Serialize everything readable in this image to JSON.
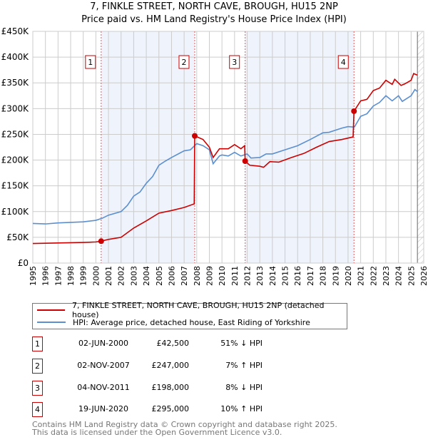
{
  "chart_data": {
    "type": "line",
    "title": "7, FINKLE STREET, NORTH CAVE, BROUGH, HU15 2NP",
    "subtitle": "Price paid vs. HM Land Registry's House Price Index (HPI)",
    "xlim": [
      1995,
      2026
    ],
    "ylim": [
      0,
      450000
    ],
    "x_ticks": [
      "1995",
      "1996",
      "1997",
      "1998",
      "1999",
      "2000",
      "2001",
      "2002",
      "2003",
      "2004",
      "2005",
      "2006",
      "2007",
      "2008",
      "2009",
      "2010",
      "2011",
      "2012",
      "2013",
      "2014",
      "2015",
      "2016",
      "2017",
      "2018",
      "2019",
      "2020",
      "2021",
      "2022",
      "2023",
      "2024",
      "2025",
      "2026"
    ],
    "y_ticks": [
      {
        "v": 0,
        "label": "£0"
      },
      {
        "v": 50000,
        "label": "£50K"
      },
      {
        "v": 100000,
        "label": "£100K"
      },
      {
        "v": 150000,
        "label": "£150K"
      },
      {
        "v": 200000,
        "label": "£200K"
      },
      {
        "v": 250000,
        "label": "£250K"
      },
      {
        "v": 300000,
        "label": "£300K"
      },
      {
        "v": 350000,
        "label": "£350K"
      },
      {
        "v": 400000,
        "label": "£400K"
      },
      {
        "v": 450000,
        "label": "£450K"
      }
    ],
    "grid": true,
    "shaded_periods": [
      [
        2000.42,
        2007.84
      ],
      [
        2011.84,
        2020.47
      ]
    ],
    "forecast_hatch_from": 2025.5,
    "series": [
      {
        "name": "7, FINKLE STREET, NORTH CAVE, BROUGH, HU15 2NP (detached house)",
        "color": "#cc0000",
        "x": [
          1995,
          1997,
          1999,
          2000,
          2000.42,
          2001,
          2002,
          2003,
          2004,
          2005,
          2006,
          2007,
          2007.8,
          2007.84,
          2008.5,
          2009,
          2009.3,
          2009.8,
          2010.5,
          2011,
          2011.5,
          2011.8,
          2011.84,
          2012.2,
          2013,
          2013.3,
          2013.8,
          2014.5,
          2015.5,
          2016.5,
          2017.5,
          2018.5,
          2019.5,
          2020.4,
          2020.47,
          2021,
          2021.5,
          2022,
          2022.5,
          2023,
          2023.5,
          2023.7,
          2024.2,
          2024.5,
          2025,
          2025.2,
          2025.5
        ],
        "y": [
          38000,
          39000,
          40000,
          41000,
          42500,
          46000,
          50000,
          68000,
          82000,
          97000,
          102000,
          108000,
          115000,
          247000,
          240000,
          225000,
          205000,
          222000,
          222000,
          230000,
          222000,
          228000,
          198000,
          190000,
          188000,
          186000,
          197000,
          196000,
          205000,
          213000,
          225000,
          236000,
          240000,
          245000,
          295000,
          315000,
          318000,
          335000,
          340000,
          355000,
          347000,
          357000,
          345000,
          348000,
          355000,
          368000,
          365000
        ]
      },
      {
        "name": "HPI: Average price, detached house, East Riding of Yorkshire",
        "color": "#5b8fd0",
        "x": [
          1995,
          1996,
          1997,
          1998,
          1999,
          2000,
          2000.5,
          2001,
          2002,
          2002.5,
          2003,
          2003.5,
          2004,
          2004.5,
          2005,
          2005.5,
          2006,
          2007,
          2007.5,
          2008,
          2008.5,
          2009,
          2009.3,
          2009.8,
          2010,
          2010.5,
          2011,
          2011.5,
          2012,
          2012.3,
          2013,
          2013.5,
          2014,
          2015,
          2016,
          2017,
          2018,
          2018.5,
          2019,
          2019.5,
          2020,
          2020.5,
          2021,
          2021.5,
          2022,
          2022.5,
          2023,
          2023.5,
          2024,
          2024.3,
          2025,
          2025.3,
          2025.5
        ],
        "y": [
          77000,
          76000,
          78000,
          79000,
          80000,
          83000,
          87000,
          93000,
          100000,
          112000,
          130000,
          138000,
          155000,
          168000,
          190000,
          198000,
          205000,
          218000,
          220000,
          232000,
          228000,
          220000,
          193000,
          208000,
          210000,
          208000,
          215000,
          208000,
          212000,
          204000,
          205000,
          212000,
          212000,
          220000,
          228000,
          240000,
          253000,
          254000,
          258000,
          262000,
          265000,
          264000,
          285000,
          290000,
          305000,
          312000,
          325000,
          315000,
          325000,
          314000,
          325000,
          337000,
          333000
        ]
      }
    ],
    "sales": [
      {
        "id": "1",
        "x": 2000.42,
        "price": 42500,
        "date": "02-JUN-2000",
        "price_label": "£42,500",
        "hpi": "51% ↓ HPI"
      },
      {
        "id": "2",
        "x": 2007.84,
        "price": 247000,
        "date": "02-NOV-2007",
        "price_label": "£247,000",
        "hpi": "7% ↑ HPI"
      },
      {
        "id": "3",
        "x": 2011.84,
        "price": 198000,
        "date": "04-NOV-2011",
        "price_label": "£198,000",
        "hpi": "8% ↓ HPI"
      },
      {
        "id": "4",
        "x": 2020.47,
        "price": 295000,
        "date": "19-JUN-2020",
        "price_label": "£295,000",
        "hpi": "10% ↑ HPI"
      }
    ]
  },
  "footer": [
    "Contains HM Land Registry data © Crown copyright and database right 2025.",
    "This data is licensed under the Open Government Licence v3.0."
  ]
}
